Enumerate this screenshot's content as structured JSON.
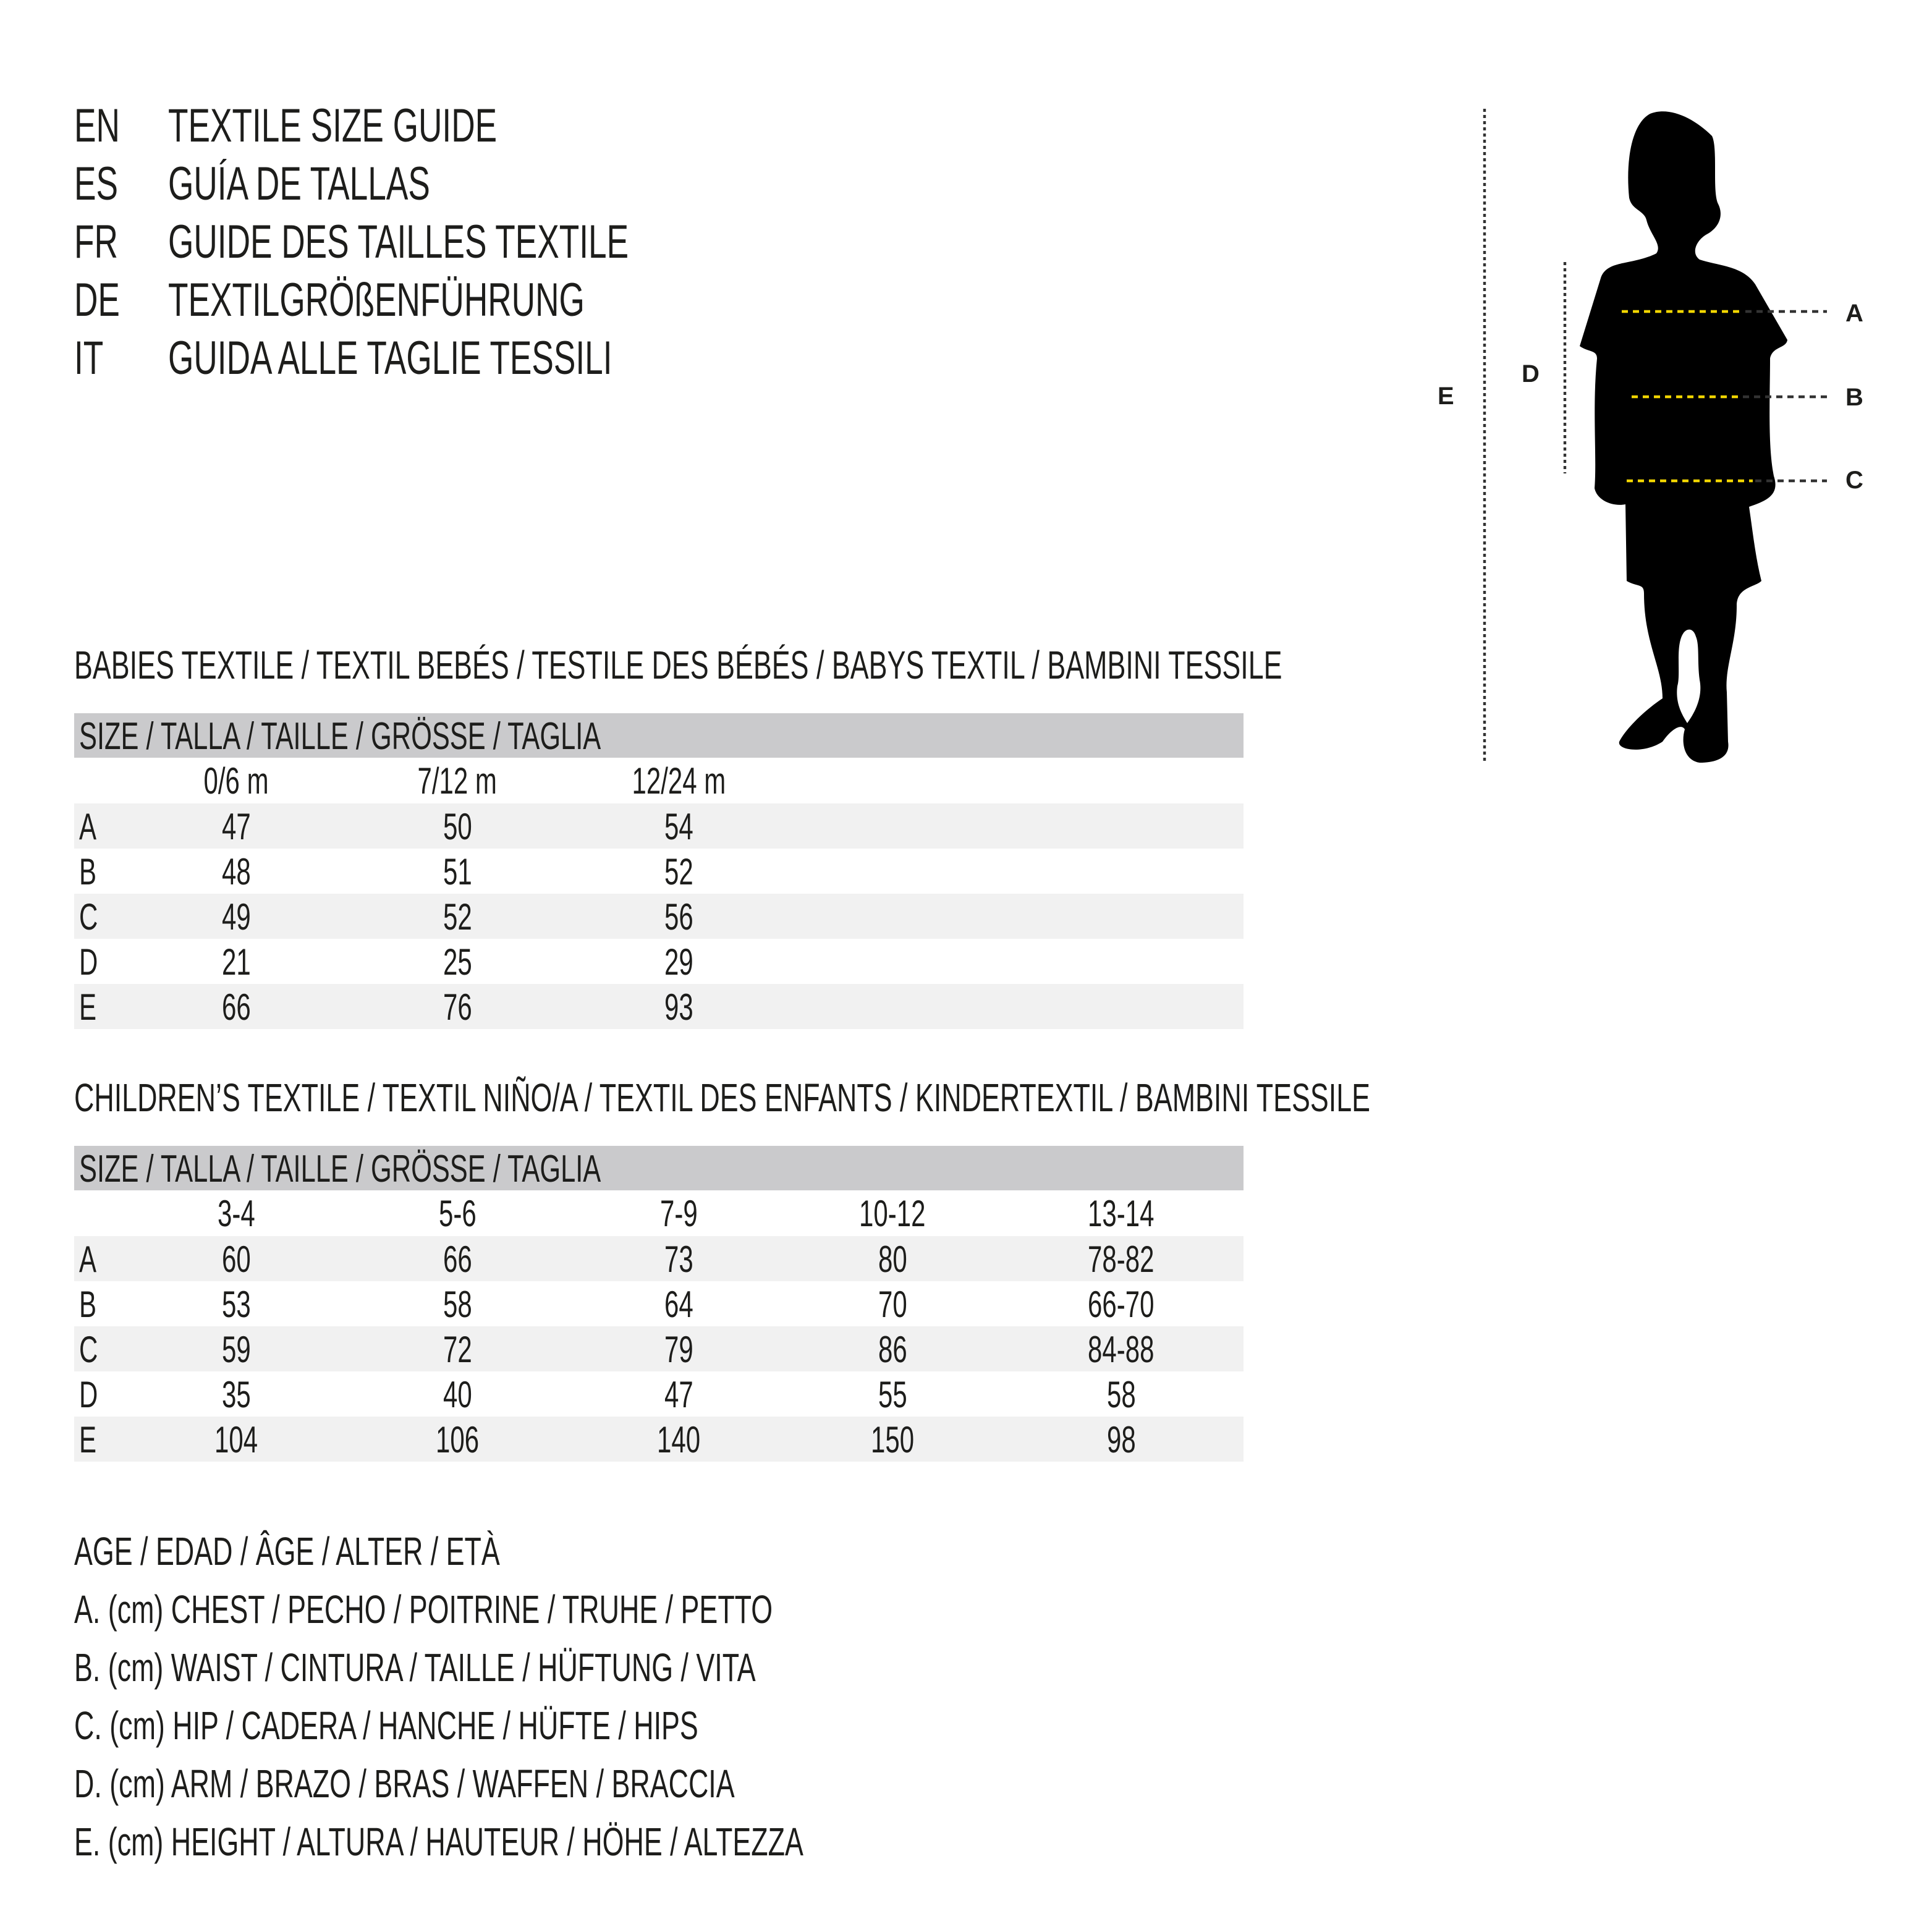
{
  "titles": [
    {
      "code": "EN",
      "text": "TEXTILE SIZE GUIDE"
    },
    {
      "code": "ES",
      "text": "GUÍA DE TALLAS"
    },
    {
      "code": "FR",
      "text": "GUIDE DES TAILLES TEXTILE"
    },
    {
      "code": "DE",
      "text": "TEXTILGRÖßENFÜHRUNG"
    },
    {
      "code": "IT",
      "text": "GUIDA ALLE TAGLIE TESSILI"
    }
  ],
  "babies": {
    "heading": "BABIES TEXTILE / TEXTIL BEBÉS / TESTILE DES BÉBÉS / BABYS TEXTIL / BAMBINI TESSILE",
    "size_header": "SIZE / TALLA / TAILLE / GRÖSSE / TAGLIA",
    "columns": [
      "0/6 m",
      "7/12 m",
      "12/24 m"
    ],
    "rows": [
      {
        "label": "A",
        "values": [
          "47",
          "50",
          "54"
        ]
      },
      {
        "label": "B",
        "values": [
          "48",
          "51",
          "52"
        ]
      },
      {
        "label": "C",
        "values": [
          "49",
          "52",
          "56"
        ]
      },
      {
        "label": "D",
        "values": [
          "21",
          "25",
          "29"
        ]
      },
      {
        "label": "E",
        "values": [
          "66",
          "76",
          "93"
        ]
      }
    ]
  },
  "children": {
    "heading": "CHILDREN’S TEXTILE / TEXTIL NIÑO/A / TEXTIL DES ENFANTS / KINDERTEXTIL / BAMBINI TESSILE",
    "size_header": "SIZE / TALLA / TAILLE / GRÖSSE / TAGLIA",
    "columns": [
      "3-4",
      "5-6",
      "7-9",
      "10-12",
      "13-14"
    ],
    "rows": [
      {
        "label": "A",
        "values": [
          "60",
          "66",
          "73",
          "80",
          "78-82"
        ]
      },
      {
        "label": "B",
        "values": [
          "53",
          "58",
          "64",
          "70",
          "66-70"
        ]
      },
      {
        "label": "C",
        "values": [
          "59",
          "72",
          "79",
          "86",
          "84-88"
        ]
      },
      {
        "label": "D",
        "values": [
          "35",
          "40",
          "47",
          "55",
          "58"
        ]
      },
      {
        "label": "E",
        "values": [
          "104",
          "106",
          "140",
          "150",
          "98"
        ]
      }
    ]
  },
  "legend": [
    "AGE / EDAD / ÂGE / ALTER / ETÀ",
    "A. (cm) CHEST / PECHO / POITRINE / TRUHE / PETTO",
    "B. (cm) WAIST / CINTURA / TAILLE / HÜFTUNG / VITA",
    "C. (cm) HIP / CADERA / HANCHE / HÜFTE / HIPS",
    "D. (cm) ARM / BRAZO / BRAS / WAFFEN / BRACCIA",
    "E. (cm) HEIGHT / ALTURA / HAUTEUR / HÖHE / ALTEZZA"
  ],
  "figure": {
    "labels": {
      "A": "A",
      "B": "B",
      "C": "C",
      "D": "D",
      "E": "E"
    },
    "colors": {
      "silhouette": "#000000",
      "measure_line": "#f2d500",
      "guide_line": "#1d1d1b"
    }
  }
}
